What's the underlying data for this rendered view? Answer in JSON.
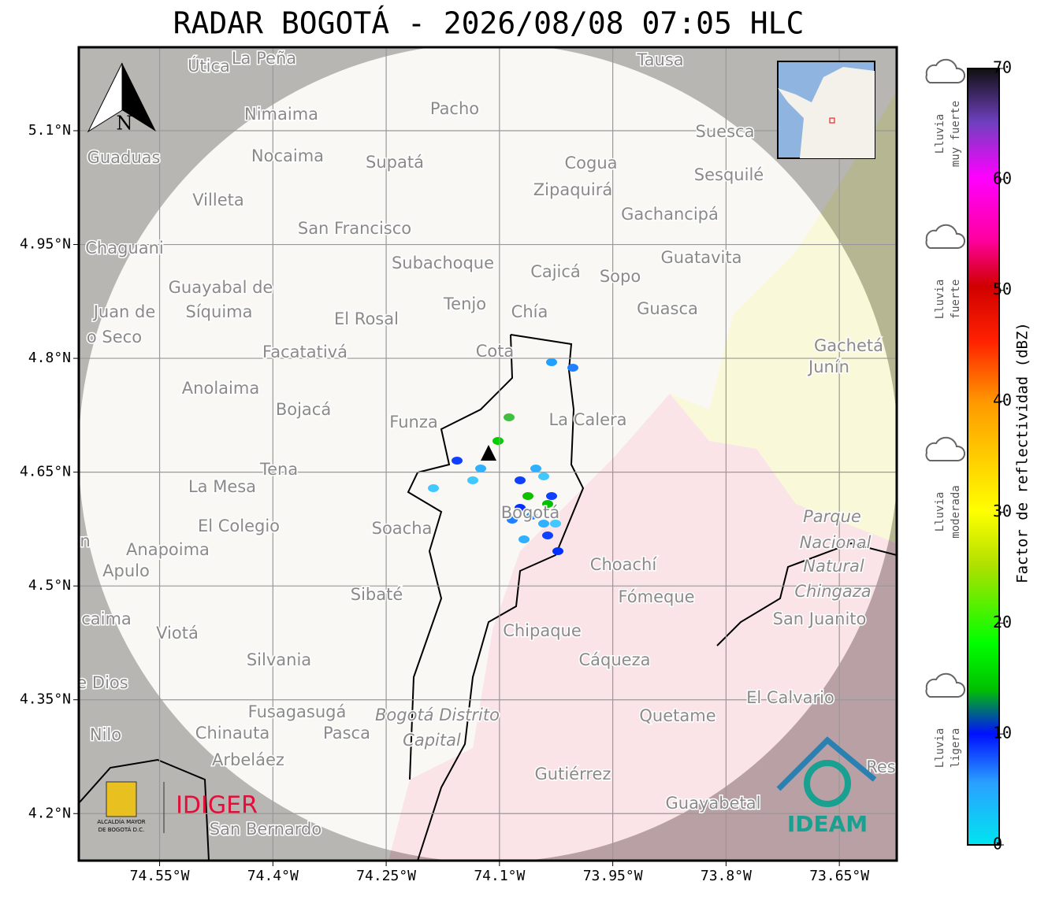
{
  "title": "RADAR BOGOTÁ - 2026/08/08 07:05 HLC",
  "map": {
    "lon_range": [
      -74.657,
      -73.574
    ],
    "lat_range": [
      4.138,
      5.21
    ],
    "lon_ticks": [
      {
        "value": -74.55,
        "label": "74.55°W"
      },
      {
        "value": -74.4,
        "label": "74.4°W"
      },
      {
        "value": -74.25,
        "label": "74.25°W"
      },
      {
        "value": -74.1,
        "label": "74.1°W"
      },
      {
        "value": -73.95,
        "label": "73.95°W"
      },
      {
        "value": -73.8,
        "label": "73.8°W"
      },
      {
        "value": -73.65,
        "label": "73.65°W"
      }
    ],
    "lat_ticks": [
      {
        "value": 5.1,
        "label": "5.1°N"
      },
      {
        "value": 4.95,
        "label": "4.95°N"
      },
      {
        "value": 4.8,
        "label": "4.8°N"
      },
      {
        "value": 4.65,
        "label": "4.65°N"
      },
      {
        "value": 4.5,
        "label": "4.5°N"
      },
      {
        "value": 4.35,
        "label": "4.35°N"
      },
      {
        "value": 4.2,
        "label": "4.2°N"
      }
    ],
    "north_label": "N",
    "places": [
      "Útica",
      "La Peña",
      "Tausa",
      "Pacho",
      "Nimaima",
      "Guaduas",
      "Nocaima",
      "Supatá",
      "Cogua",
      "Suesca",
      "Sesquilé",
      "Zipaquirá",
      "Villeta",
      "Gachancipá",
      "San Francisco",
      "Chaguani",
      "Guatavita",
      "Subachoque",
      "Cajicá",
      "Sopo",
      "Guayabal de",
      "Síquima",
      "Juan de",
      "o Seco",
      "Tenjo",
      "Chía",
      "El Rosal",
      "Guasca",
      "Facatativá",
      "Cota",
      "Gachetá",
      "Junín",
      "Anolaima",
      "Bojacá",
      "Funza",
      "La Calera",
      "Tena",
      "La Mesa",
      "El Colegio",
      "Soacha",
      "Bogotá",
      "Parque",
      "Nacional",
      "Natural",
      "Chingaza",
      "n",
      "Anapoima",
      "Apulo",
      "Choachí",
      "Sibaté",
      "Fómeque",
      "San Juanito",
      "caima",
      "Viotá",
      "Chipaque",
      "Silvania",
      "Cáqueza",
      "e Dios",
      "El Calvario",
      "Fusagasugá",
      "Bogotá Distrito",
      "Capital",
      "Quetame",
      "Nilo",
      "Chinauta",
      "Pasca",
      "Arbeláez",
      "Gutiérrez",
      "Res",
      "Guayabetal",
      "San Bernardo"
    ]
  },
  "logos": {
    "alcaldia": [
      "ALCALDÍA MAYOR",
      "DE BOGOTÁ D.C."
    ],
    "idiger": "IDIGER",
    "ideam": "IDEAM"
  },
  "colorbar": {
    "label": "Factor de reflectividad (dBZ)",
    "range": [
      0,
      70
    ],
    "ticks": [
      0,
      10,
      20,
      30,
      40,
      50,
      60,
      70
    ],
    "categories": [
      [
        "Lluvia",
        "muy fuerte"
      ],
      [
        "Lluvia",
        "fuerte"
      ],
      [
        "Lluvia",
        "moderada"
      ],
      [
        "Lluvia",
        "ligera"
      ]
    ]
  }
}
